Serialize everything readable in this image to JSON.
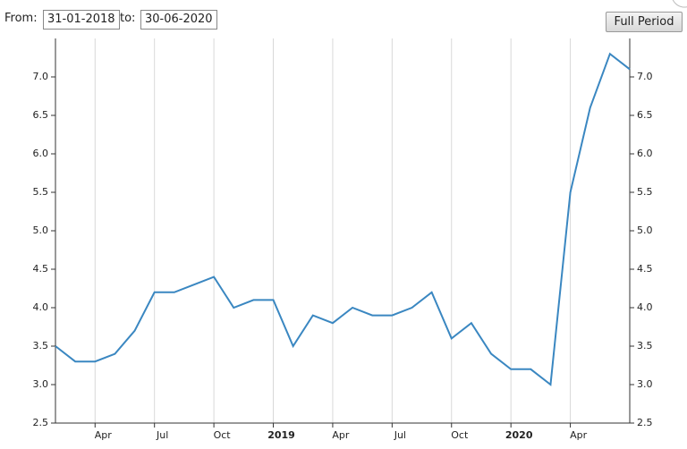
{
  "controls": {
    "from_label": "From:",
    "from_value": "31-01-2018",
    "to_label": "to:",
    "to_value": "30-06-2020",
    "button": "Full Period"
  },
  "chart_data": {
    "type": "line",
    "x": [
      1,
      2,
      3,
      4,
      5,
      6,
      7,
      8,
      9,
      10,
      11,
      12,
      13,
      14,
      15,
      16,
      17,
      18,
      19,
      20,
      21,
      22,
      23,
      24,
      25,
      26,
      27,
      28,
      29,
      30
    ],
    "series": [
      {
        "color": "#3a87c1",
        "values": [
          3.5,
          3.3,
          3.3,
          3.4,
          3.7,
          4.2,
          4.2,
          4.3,
          4.4,
          4.0,
          4.1,
          4.1,
          3.5,
          3.9,
          3.8,
          4.0,
          3.9,
          3.9,
          4.0,
          4.2,
          3.6,
          3.8,
          3.4,
          3.2,
          3.2,
          3.0,
          5.5,
          6.6,
          7.3,
          7.1
        ]
      }
    ],
    "xlim": [
      1,
      30
    ],
    "xticks": [
      {
        "value": 3,
        "label": "Apr"
      },
      {
        "value": 6,
        "label": "Jul"
      },
      {
        "value": 9,
        "label": "Oct"
      },
      {
        "value": 12,
        "label": "2019"
      },
      {
        "value": 15,
        "label": "Apr"
      },
      {
        "value": 18,
        "label": "Jul"
      },
      {
        "value": 21,
        "label": "Oct"
      },
      {
        "value": 24,
        "label": "2020"
      },
      {
        "value": 27,
        "label": "Apr"
      }
    ],
    "ylim": [
      2.5,
      7.5
    ],
    "yticks": [
      {
        "value": 2.5,
        "label": "2.5"
      },
      {
        "value": 3,
        "label": "3.0"
      },
      {
        "value": 3.5,
        "label": "3.5"
      },
      {
        "value": 4,
        "label": "4.0"
      },
      {
        "value": 4.5,
        "label": "4.5"
      },
      {
        "value": 5,
        "label": "5.0"
      },
      {
        "value": 5.5,
        "label": "5.5"
      },
      {
        "value": 6,
        "label": "6.0"
      },
      {
        "value": 6.5,
        "label": "6.5"
      },
      {
        "value": 7,
        "label": "7.0"
      }
    ],
    "grid": true
  }
}
